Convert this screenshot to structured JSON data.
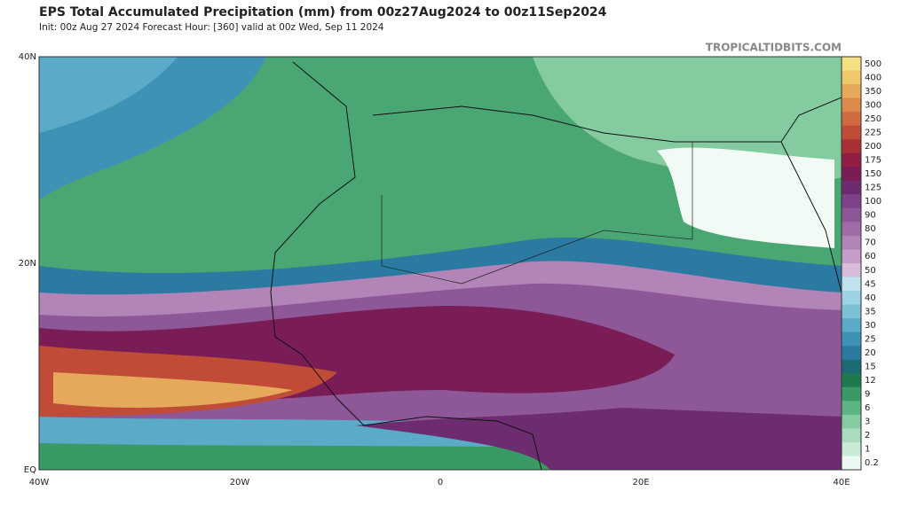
{
  "title": "EPS Total Accumulated Precipitation (mm) from 00z27Aug2024 to 00z11Sep2024",
  "subtitle": "Init: 00z Aug 27 2024   Forecast Hour: [360]   valid at 00z Wed, Sep 11 2024",
  "watermark": "TROPICALTIDBITS.COM",
  "lat_labels": [
    "40N",
    "20N",
    "EQ"
  ],
  "lon_labels": [
    "40W",
    "20W",
    "0",
    "20E",
    "40E"
  ],
  "legend": [
    {
      "label": "500",
      "color": "#f4e282"
    },
    {
      "label": "400",
      "color": "#eec86a"
    },
    {
      "label": "350",
      "color": "#e6a85a"
    },
    {
      "label": "300",
      "color": "#dc8a4c"
    },
    {
      "label": "250",
      "color": "#d06a40"
    },
    {
      "label": "225",
      "color": "#c04c38"
    },
    {
      "label": "200",
      "color": "#aa3038"
    },
    {
      "label": "175",
      "color": "#921e44"
    },
    {
      "label": "150",
      "color": "#7a1c56"
    },
    {
      "label": "125",
      "color": "#6e2c70"
    },
    {
      "label": "100",
      "color": "#7e4288"
    },
    {
      "label": "90",
      "color": "#8e5898"
    },
    {
      "label": "80",
      "color": "#a06ca8"
    },
    {
      "label": "70",
      "color": "#b284b8"
    },
    {
      "label": "60",
      "color": "#c49ec8"
    },
    {
      "label": "50",
      "color": "#d8bcda"
    },
    {
      "label": "45",
      "color": "#bfe2ee"
    },
    {
      "label": "40",
      "color": "#9cd2e4"
    },
    {
      "label": "35",
      "color": "#7cc0d6"
    },
    {
      "label": "30",
      "color": "#5aaac8"
    },
    {
      "label": "25",
      "color": "#3e92b6"
    },
    {
      "label": "20",
      "color": "#2a7aa2"
    },
    {
      "label": "15",
      "color": "#1c6a72"
    },
    {
      "label": "12",
      "color": "#1e7a4e"
    },
    {
      "label": "9",
      "color": "#3a9a66"
    },
    {
      "label": "6",
      "color": "#5cb482"
    },
    {
      "label": "3",
      "color": "#84cca0"
    },
    {
      "label": "2",
      "color": "#a8dcbc"
    },
    {
      "label": "1",
      "color": "#c8ead6"
    },
    {
      "label": "0.2",
      "color": "#eef8f2"
    }
  ]
}
